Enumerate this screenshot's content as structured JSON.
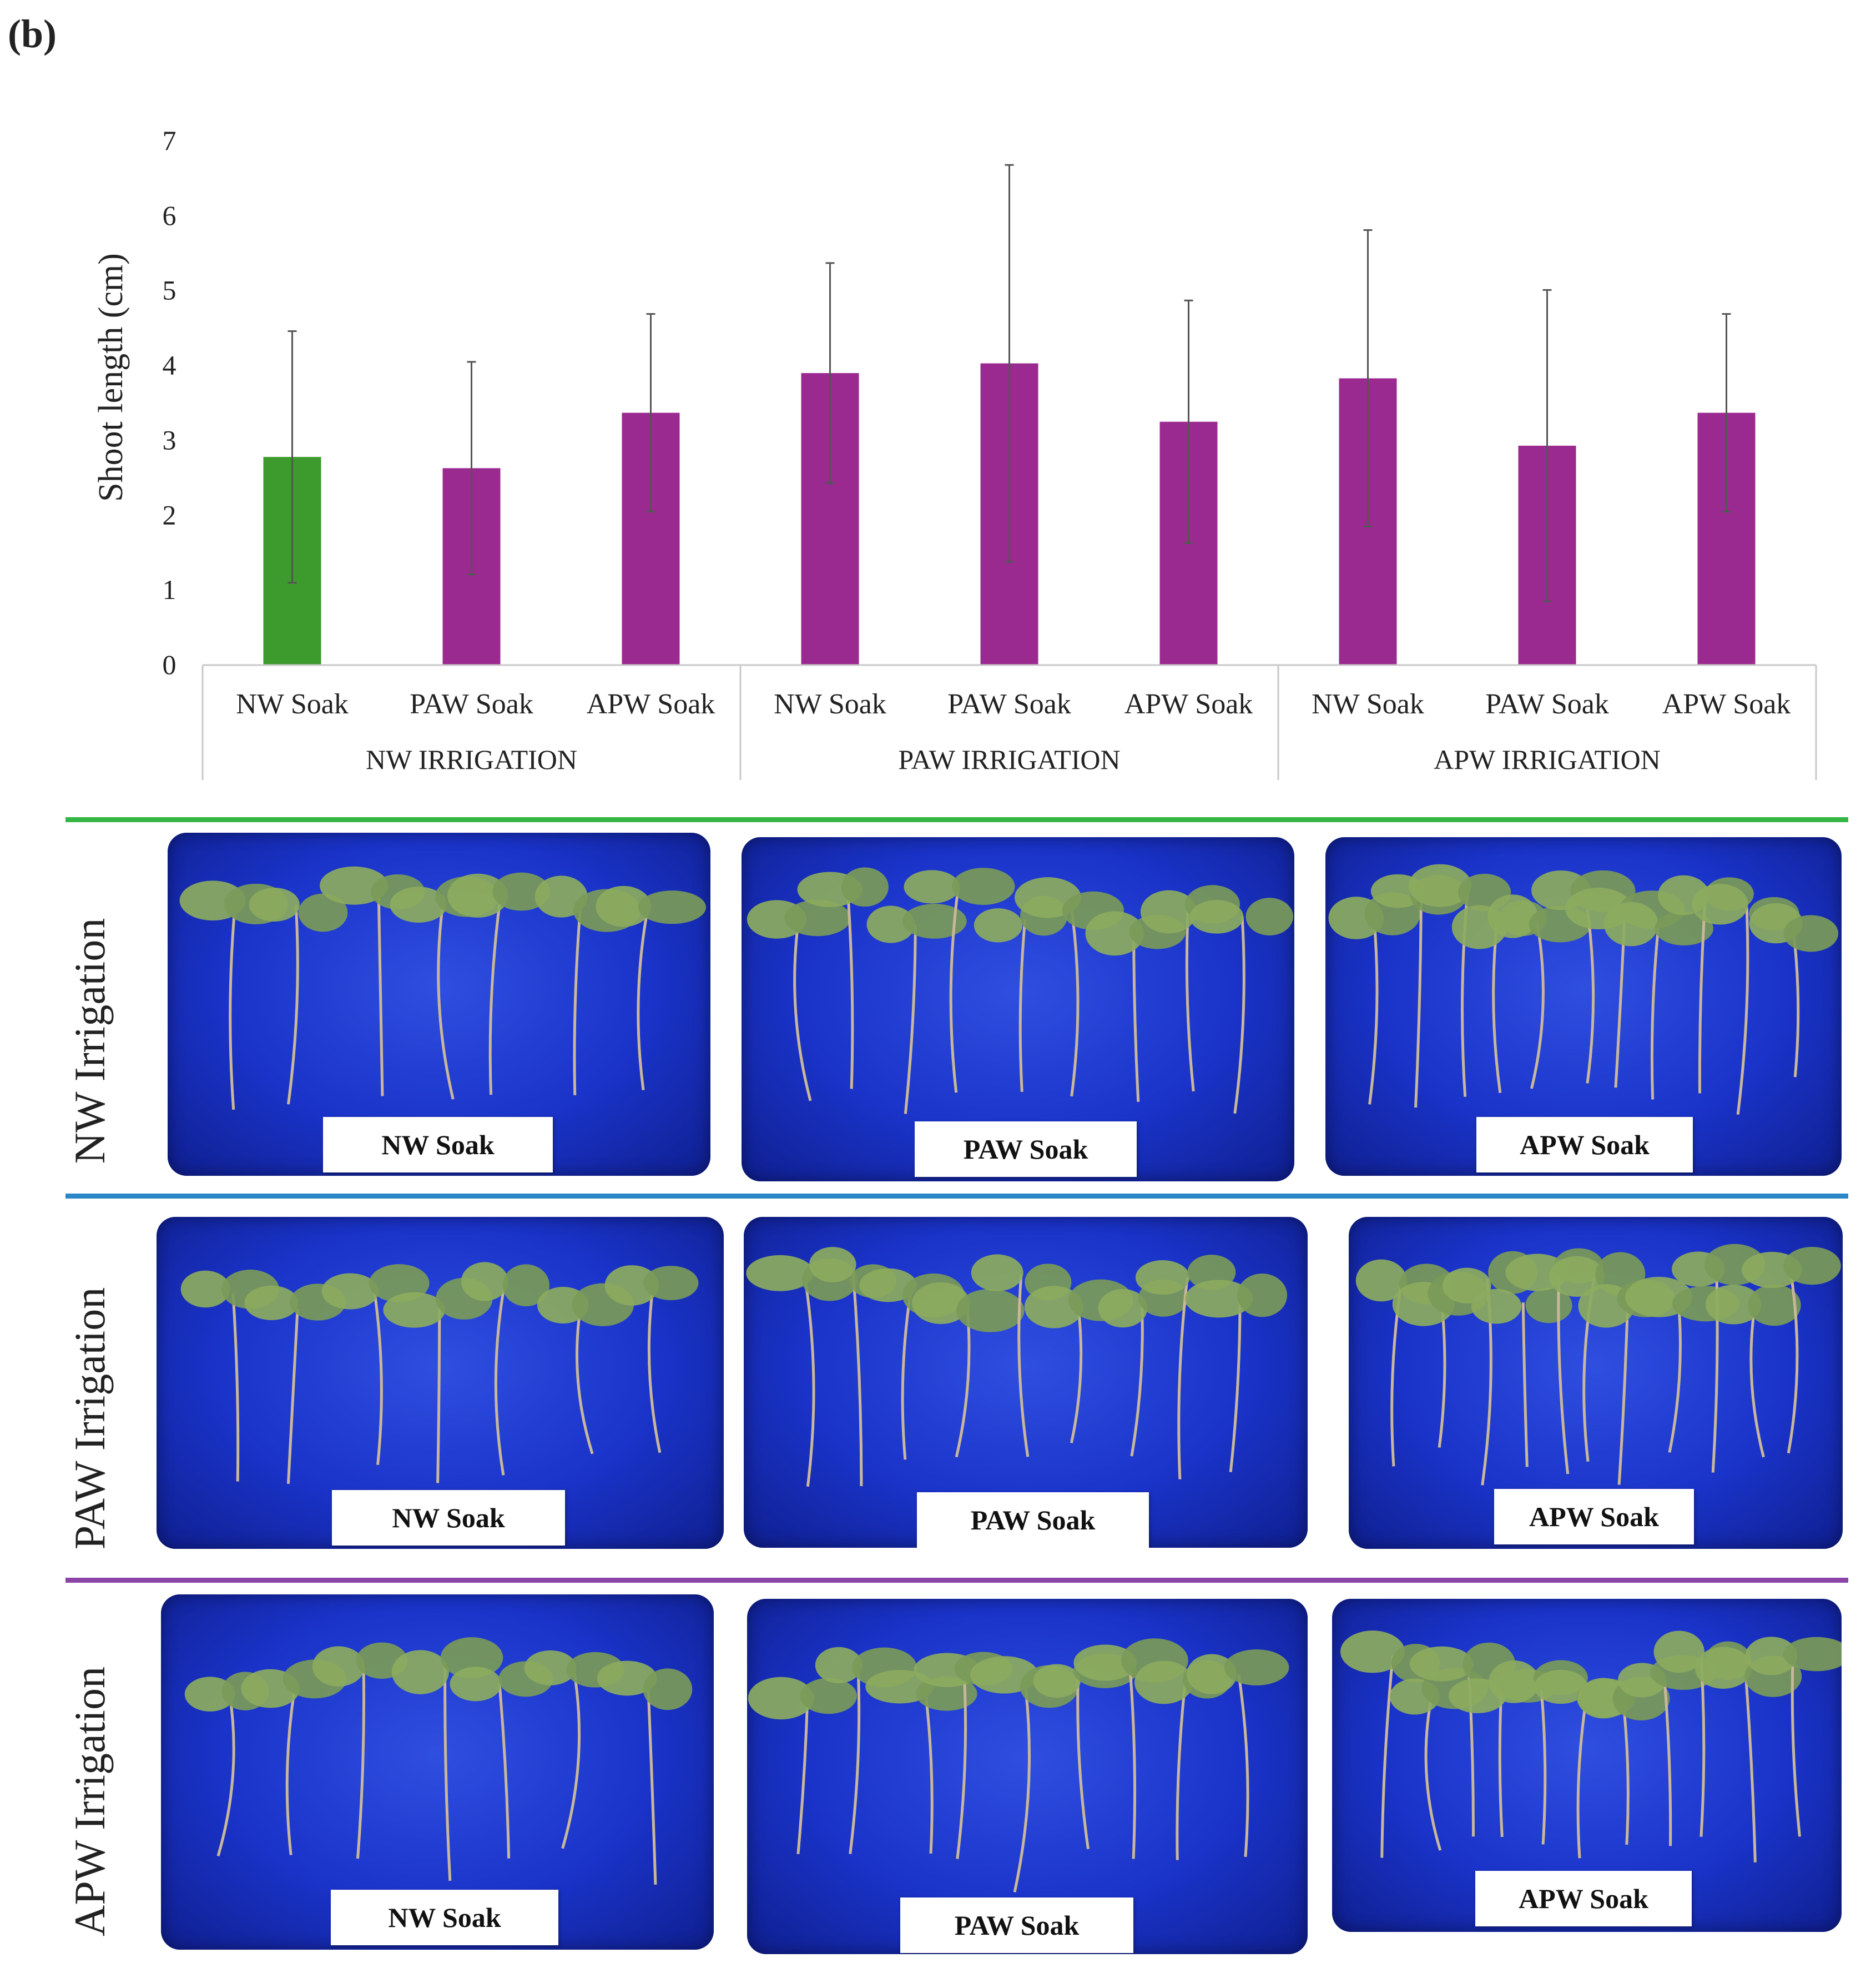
{
  "panel_label": "(b)",
  "colors": {
    "control_bar": "#3d9a2c",
    "treatment_bar": "#9b2a90",
    "nw_line": "#35b544",
    "paw_line": "#2c87c8",
    "apw_line": "#8b45a8"
  },
  "chart_data": {
    "type": "bar",
    "title": "",
    "xlabel": "",
    "ylabel": "Shoot length (cm)",
    "ylim": [
      0,
      7
    ],
    "yticks": [
      "0",
      "1",
      "2",
      "3",
      "4",
      "5",
      "6",
      "7"
    ],
    "grid": false,
    "groups": [
      {
        "label": "NW IRRIGATION",
        "categories": [
          "NW Soak",
          "PAW Soak",
          "APW Soak"
        ],
        "values": [
          2.78,
          2.63,
          3.37
        ],
        "errors": [
          1.68,
          1.42,
          1.32
        ]
      },
      {
        "label": "PAW IRRIGATION",
        "categories": [
          "NW Soak",
          "PAW Soak",
          "APW Soak"
        ],
        "values": [
          3.9,
          4.03,
          3.25
        ],
        "errors": [
          1.47,
          2.65,
          1.62
        ]
      },
      {
        "label": "APW IRRIGATION",
        "categories": [
          "NW Soak",
          "PAW Soak",
          "APW Soak"
        ],
        "values": [
          3.83,
          2.93,
          3.37
        ],
        "errors": [
          1.98,
          2.08,
          1.32
        ]
      }
    ]
  },
  "photos": {
    "rows": [
      {
        "label": "NW Irrigation",
        "captions": [
          "NW Soak",
          "PAW Soak",
          "APW Soak"
        ]
      },
      {
        "label": "PAW Irrigation",
        "captions": [
          "NW Soak",
          "PAW Soak",
          "APW Soak"
        ]
      },
      {
        "label": "APW Irrigation",
        "captions": [
          "NW Soak",
          "PAW Soak",
          "APW Soak"
        ]
      }
    ]
  }
}
